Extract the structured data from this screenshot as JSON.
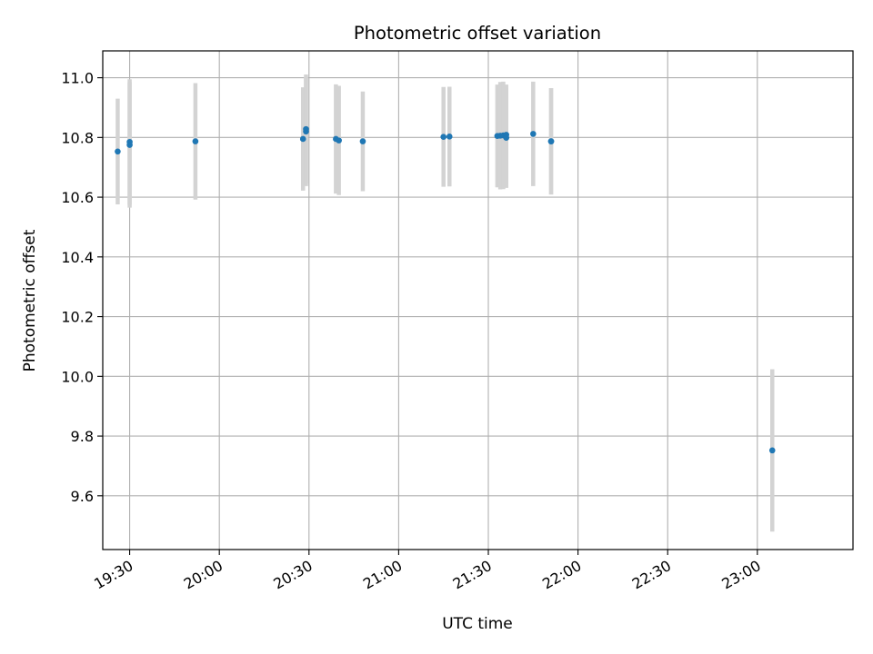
{
  "chart_data": {
    "type": "scatter",
    "title": "Photometric offset variation",
    "xlabel": "UTC time",
    "ylabel": "Photometric offset",
    "xlim": [
      "19:21",
      "23:32"
    ],
    "ylim": [
      9.42,
      11.09
    ],
    "grid": true,
    "x_ticks": [
      "19:30",
      "20:00",
      "20:30",
      "21:00",
      "21:30",
      "22:00",
      "22:30",
      "23:00"
    ],
    "y_ticks": [
      "9.6",
      "9.8",
      "10.0",
      "10.2",
      "10.4",
      "10.6",
      "10.8",
      "11.0"
    ],
    "colors": {
      "point": "#1f77b4",
      "errorbar": "#d3d3d3",
      "grid": "#b0b0b0"
    },
    "series": [
      {
        "points": [
          {
            "x": "19:26",
            "y": 10.753,
            "err": 0.177
          },
          {
            "x": "19:30",
            "y": 10.785,
            "err": 0.21
          },
          {
            "x": "19:30",
            "y": 10.775,
            "err": 0.21
          },
          {
            "x": "19:52",
            "y": 10.787,
            "err": 0.195
          },
          {
            "x": "20:28",
            "y": 10.795,
            "err": 0.173
          },
          {
            "x": "20:29",
            "y": 10.828,
            "err": 0.183
          },
          {
            "x": "20:29",
            "y": 10.82,
            "err": 0.183
          },
          {
            "x": "20:39",
            "y": 10.795,
            "err": 0.183
          },
          {
            "x": "20:40",
            "y": 10.79,
            "err": 0.183
          },
          {
            "x": "20:48",
            "y": 10.787,
            "err": 0.167
          },
          {
            "x": "21:15",
            "y": 10.802,
            "err": 0.167
          },
          {
            "x": "21:17",
            "y": 10.803,
            "err": 0.167
          },
          {
            "x": "21:33",
            "y": 10.805,
            "err": 0.172
          },
          {
            "x": "21:34",
            "y": 10.806,
            "err": 0.18
          },
          {
            "x": "21:35",
            "y": 10.807,
            "err": 0.18
          },
          {
            "x": "21:36",
            "y": 10.809,
            "err": 0.168
          },
          {
            "x": "21:36",
            "y": 10.799,
            "err": 0.168
          },
          {
            "x": "21:45",
            "y": 10.812,
            "err": 0.175
          },
          {
            "x": "21:51",
            "y": 10.787,
            "err": 0.178
          },
          {
            "x": "21:51",
            "y": 10.787,
            "err": 0.178
          },
          {
            "x": "23:05",
            "y": 9.752,
            "err": 0.272
          }
        ]
      }
    ]
  }
}
